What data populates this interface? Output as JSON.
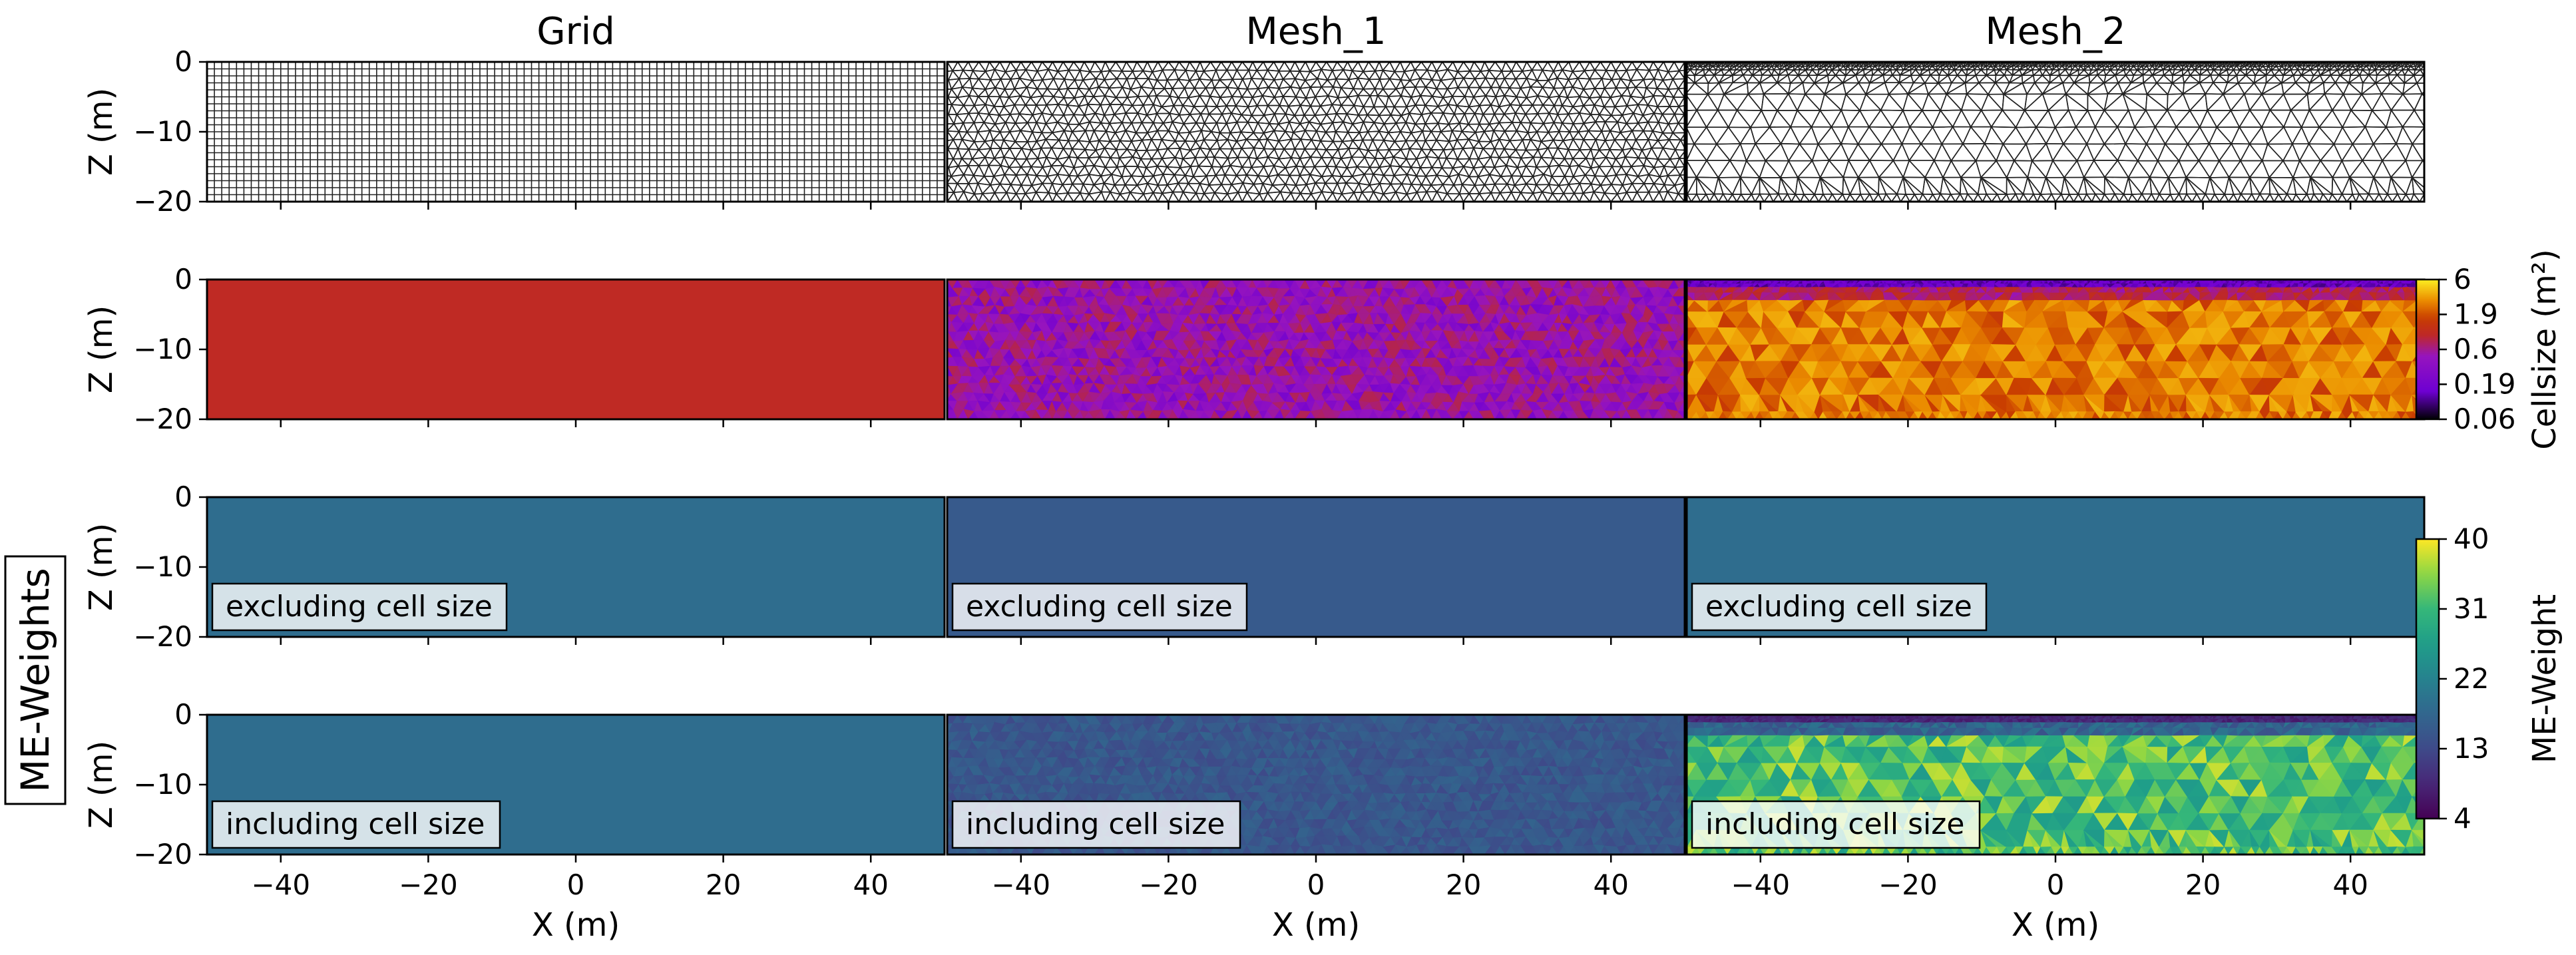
{
  "chart_data": {
    "type": "heatmap",
    "column_titles": [
      "Grid",
      "Mesh_1",
      "Mesh_2"
    ],
    "xlabel": "X (m)",
    "ylabel": "Z (m)",
    "xlim": [
      -50,
      50
    ],
    "ylim": [
      -20,
      0
    ],
    "x_ticks": [
      "−40",
      "−20",
      "0",
      "20",
      "40"
    ],
    "y_ticks": [
      "0",
      "−10",
      "−20"
    ],
    "row_label": "ME-Weights",
    "panel_labels": {
      "excluding": "excluding cell size",
      "including": "including cell size"
    },
    "colorbars": [
      {
        "label": "Cellsize (m²)",
        "scale": "log",
        "range": [
          0.06,
          6
        ],
        "ticks": [
          "6",
          "1.9",
          "0.6",
          "0.19",
          "0.06"
        ],
        "colormap": "plasma-like"
      },
      {
        "label": "ME-Weight",
        "scale": "linear",
        "range": [
          4,
          40
        ],
        "ticks": [
          "40",
          "31",
          "22",
          "13",
          "4"
        ],
        "colormap": "viridis"
      }
    ],
    "panels": {
      "mesh_row": {
        "Grid": "rectangular 1 m grid",
        "Mesh_1": "uniform triangular mesh",
        "Mesh_2": "triangular mesh refined near surface"
      },
      "cellsize_m2": {
        "Grid": 1.0,
        "Mesh_1": [
          0.2,
          0.8
        ],
        "Mesh_2": {
          "near_surface": 0.15,
          "body": [
            1.5,
            4.0
          ]
        }
      },
      "me_weight_excluding": {
        "Grid": 18.5,
        "Mesh_1": 15.5,
        "Mesh_2": 18.5
      },
      "me_weight_including": {
        "Grid": 18.5,
        "Mesh_1": [
          13,
          17
        ],
        "Mesh_2": {
          "near_surface": 9,
          "body": [
            26,
            38
          ]
        }
      }
    }
  }
}
